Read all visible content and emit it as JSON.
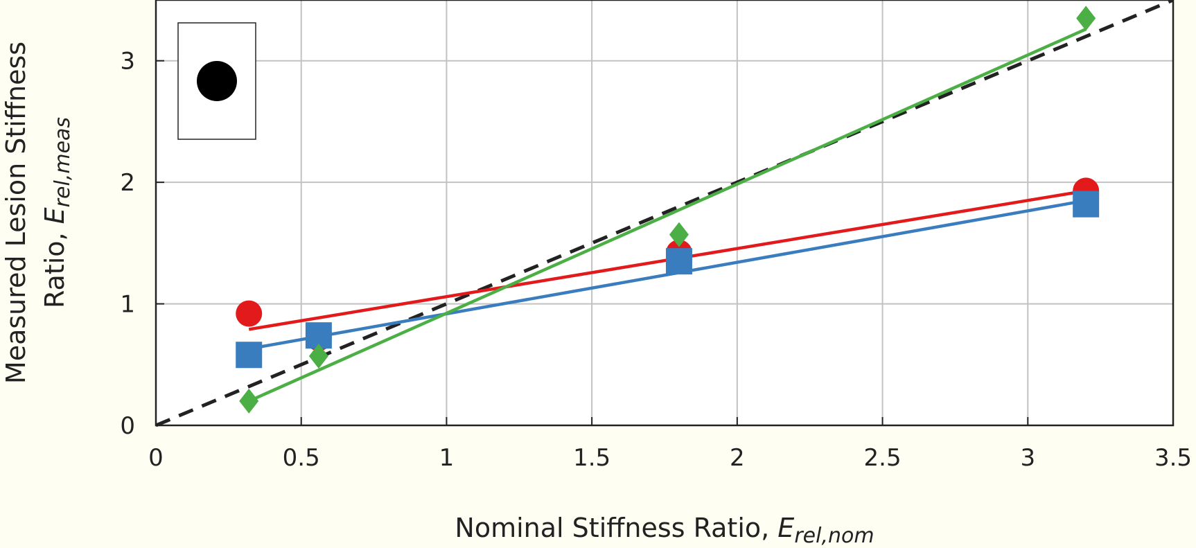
{
  "chart_data": {
    "type": "scatter",
    "xlabel": {
      "main": "Nominal Stiffness Ratio, ",
      "sym": "E",
      "sub": "rel,nom"
    },
    "ylabel": {
      "line1": "Measured Lesion Stiffness",
      "line2_main": "Ratio, ",
      "line2_sym": "E",
      "line2_sub": "rel,meas"
    },
    "xlim": [
      0,
      3.5
    ],
    "ylim": [
      0,
      3.5
    ],
    "xticks": [
      0,
      0.5,
      1,
      1.5,
      2,
      2.5,
      3,
      3.5
    ],
    "xtick_labels": [
      "0",
      "0.5",
      "1",
      "1.5",
      "2",
      "2.5",
      "3",
      "3.5"
    ],
    "yticks": [
      0,
      1,
      2,
      3
    ],
    "ytick_labels": [
      "0",
      "1",
      "2",
      "3"
    ],
    "grid": true,
    "legend_position": "top-left",
    "legend_marker": "circle",
    "series": [
      {
        "marker": "circle",
        "color": "#e31a1c",
        "x": [
          0.32,
          0.56,
          1.8,
          3.2
        ],
        "y": [
          0.92,
          0.72,
          1.42,
          1.93
        ],
        "fit": {
          "x": [
            0.32,
            3.2
          ],
          "y": [
            0.79,
            1.93
          ]
        }
      },
      {
        "marker": "square",
        "color": "#3a7dbf",
        "x": [
          0.32,
          0.56,
          1.8,
          3.2
        ],
        "y": [
          0.58,
          0.74,
          1.35,
          1.82
        ],
        "fit": {
          "x": [
            0.32,
            3.2
          ],
          "y": [
            0.63,
            1.85
          ]
        }
      },
      {
        "marker": "diamond",
        "color": "#4caf46",
        "x": [
          0.32,
          0.56,
          1.8,
          3.2
        ],
        "y": [
          0.2,
          0.57,
          1.57,
          3.35
        ],
        "fit": {
          "x": [
            0.32,
            3.2
          ],
          "y": [
            0.2,
            3.26
          ]
        }
      }
    ],
    "reference_line": {
      "style": "dashed",
      "color": "#222222",
      "x": [
        0,
        3.5
      ],
      "y": [
        0,
        3.5
      ]
    }
  }
}
